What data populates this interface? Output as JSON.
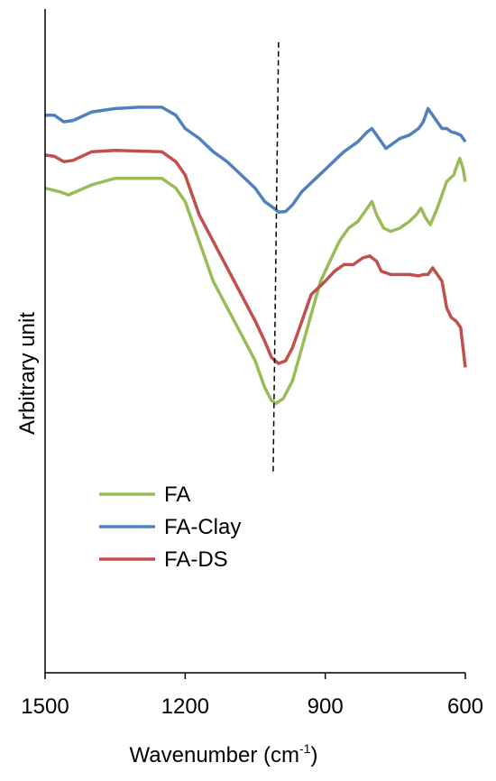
{
  "chart_data": {
    "type": "line",
    "title": "",
    "xlabel": "Wavenumber (cm",
    "xlabel_sup": "-1",
    "xlabel_suffix": ")",
    "ylabel": "Arbitrary unit",
    "xlim": [
      1500,
      600
    ],
    "x_reversed": true,
    "ylim": [
      0,
      100
    ],
    "y_tick_labels_shown": false,
    "grid": false,
    "legend_position": "lower-left",
    "x_ticks": [
      1500,
      1200,
      900,
      600
    ],
    "x_tick_labels": [
      "1500",
      "1200",
      "900",
      "600"
    ],
    "reference_line": {
      "x": 1000,
      "style": "dashed",
      "y_from": 30,
      "y_to": 95
    },
    "series": [
      {
        "name": "FA",
        "color": "#9bbb59",
        "points": [
          [
            1500,
            73
          ],
          [
            1470,
            72.5
          ],
          [
            1450,
            72
          ],
          [
            1400,
            73.5
          ],
          [
            1350,
            74.5
          ],
          [
            1300,
            74.5
          ],
          [
            1250,
            74.5
          ],
          [
            1220,
            73
          ],
          [
            1200,
            71
          ],
          [
            1170,
            65
          ],
          [
            1140,
            59
          ],
          [
            1110,
            55
          ],
          [
            1080,
            51
          ],
          [
            1050,
            47
          ],
          [
            1030,
            43
          ],
          [
            1015,
            41
          ],
          [
            1005,
            40.6
          ],
          [
            990,
            41.3
          ],
          [
            970,
            44
          ],
          [
            950,
            49
          ],
          [
            930,
            54
          ],
          [
            910,
            59
          ],
          [
            890,
            62
          ],
          [
            870,
            65
          ],
          [
            850,
            67
          ],
          [
            830,
            68
          ],
          [
            810,
            70
          ],
          [
            800,
            71
          ],
          [
            790,
            69
          ],
          [
            775,
            67
          ],
          [
            760,
            66.5
          ],
          [
            740,
            67
          ],
          [
            720,
            68
          ],
          [
            705,
            69
          ],
          [
            695,
            70
          ],
          [
            685,
            68.5
          ],
          [
            675,
            67.5
          ],
          [
            660,
            70
          ],
          [
            640,
            74
          ],
          [
            625,
            75
          ],
          [
            620,
            76
          ],
          [
            612,
            77.5
          ],
          [
            605,
            76
          ],
          [
            600,
            74
          ]
        ]
      },
      {
        "name": "FA-Clay",
        "color": "#4f81bd",
        "points": [
          [
            1500,
            84
          ],
          [
            1480,
            84
          ],
          [
            1460,
            83
          ],
          [
            1440,
            83.2
          ],
          [
            1400,
            84.5
          ],
          [
            1350,
            85
          ],
          [
            1300,
            85.2
          ],
          [
            1250,
            85.2
          ],
          [
            1220,
            84
          ],
          [
            1200,
            82
          ],
          [
            1170,
            80.5
          ],
          [
            1140,
            78.5
          ],
          [
            1110,
            77
          ],
          [
            1080,
            75
          ],
          [
            1050,
            73
          ],
          [
            1030,
            71
          ],
          [
            1010,
            70
          ],
          [
            1000,
            69.4
          ],
          [
            985,
            69.5
          ],
          [
            970,
            70.5
          ],
          [
            950,
            72.5
          ],
          [
            920,
            74.5
          ],
          [
            890,
            76.5
          ],
          [
            860,
            78.5
          ],
          [
            830,
            80
          ],
          [
            810,
            81.5
          ],
          [
            800,
            82
          ],
          [
            790,
            81
          ],
          [
            780,
            80
          ],
          [
            770,
            79
          ],
          [
            760,
            79.5
          ],
          [
            740,
            80.5
          ],
          [
            720,
            81
          ],
          [
            700,
            82
          ],
          [
            690,
            83
          ],
          [
            680,
            85
          ],
          [
            670,
            84
          ],
          [
            660,
            83
          ],
          [
            650,
            82
          ],
          [
            640,
            82
          ],
          [
            630,
            81.5
          ],
          [
            620,
            81.3
          ],
          [
            610,
            81
          ],
          [
            600,
            80
          ]
        ]
      },
      {
        "name": "FA-DS",
        "color": "#c0504d",
        "points": [
          [
            1500,
            78
          ],
          [
            1480,
            77.8
          ],
          [
            1460,
            77
          ],
          [
            1440,
            77.2
          ],
          [
            1400,
            78.5
          ],
          [
            1350,
            78.7
          ],
          [
            1300,
            78.6
          ],
          [
            1250,
            78.5
          ],
          [
            1220,
            77
          ],
          [
            1200,
            75
          ],
          [
            1170,
            69
          ],
          [
            1140,
            65
          ],
          [
            1110,
            61
          ],
          [
            1080,
            57
          ],
          [
            1050,
            53
          ],
          [
            1030,
            50
          ],
          [
            1015,
            47.5
          ],
          [
            1000,
            46.6
          ],
          [
            985,
            47
          ],
          [
            970,
            49
          ],
          [
            950,
            53
          ],
          [
            930,
            57
          ],
          [
            900,
            59
          ],
          [
            880,
            60.5
          ],
          [
            860,
            61.5
          ],
          [
            840,
            61.5
          ],
          [
            820,
            62.5
          ],
          [
            805,
            62.8
          ],
          [
            790,
            62
          ],
          [
            780,
            60.5
          ],
          [
            760,
            60
          ],
          [
            740,
            60
          ],
          [
            720,
            60
          ],
          [
            700,
            59.8
          ],
          [
            690,
            60
          ],
          [
            680,
            60
          ],
          [
            670,
            61
          ],
          [
            660,
            60
          ],
          [
            650,
            59
          ],
          [
            640,
            55
          ],
          [
            630,
            53.5
          ],
          [
            620,
            53
          ],
          [
            610,
            52
          ],
          [
            605,
            49
          ],
          [
            600,
            46
          ]
        ]
      }
    ]
  }
}
